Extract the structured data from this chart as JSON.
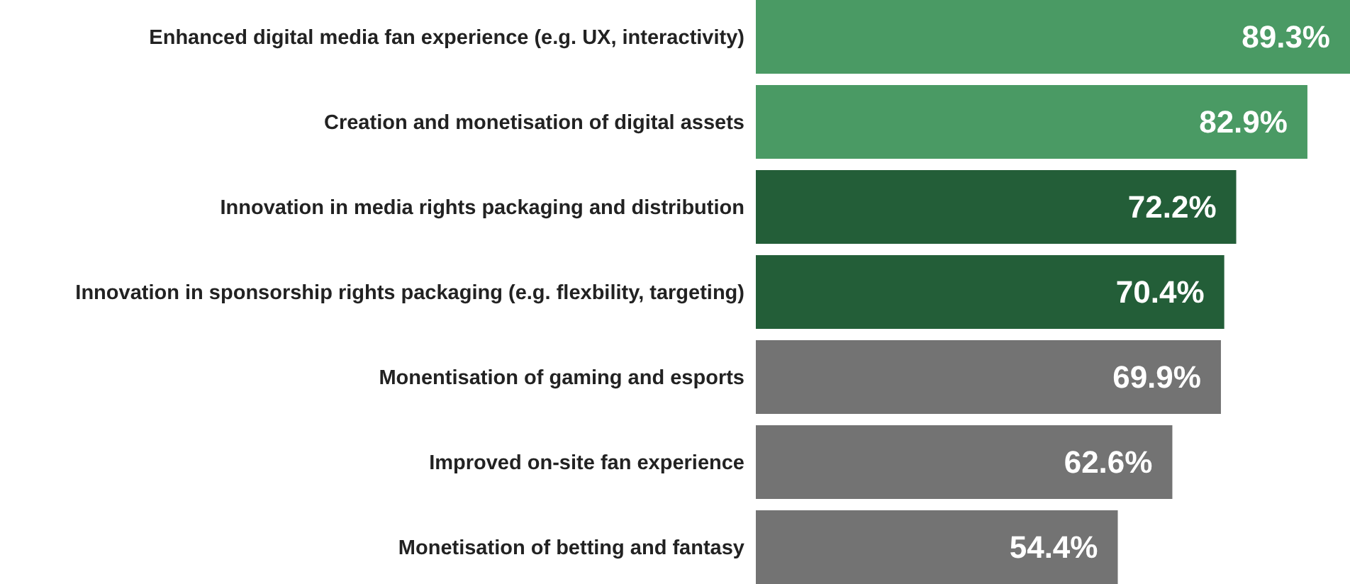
{
  "chart_data": {
    "type": "bar",
    "orientation": "horizontal",
    "categories": [
      "Enhanced digital media fan experience (e.g. UX, interactivity)",
      "Creation and monetisation of digital assets",
      "Innovation in media rights packaging and distribution",
      "Innovation in sponsorship rights packaging (e.g. flexbility, targeting)",
      "Monentisation of gaming and esports",
      "Improved on-site fan experience",
      "Monetisation of betting and fantasy"
    ],
    "values": [
      89.3,
      82.9,
      72.2,
      70.4,
      69.9,
      62.6,
      54.4
    ],
    "colors": [
      "#4a9a64",
      "#4a9a64",
      "#235e38",
      "#235e38",
      "#737373",
      "#737373",
      "#737373"
    ],
    "value_labels": [
      "89.3%",
      "82.9%",
      "72.2%",
      "70.4%",
      "69.9%",
      "62.6%",
      "54.4%"
    ]
  }
}
